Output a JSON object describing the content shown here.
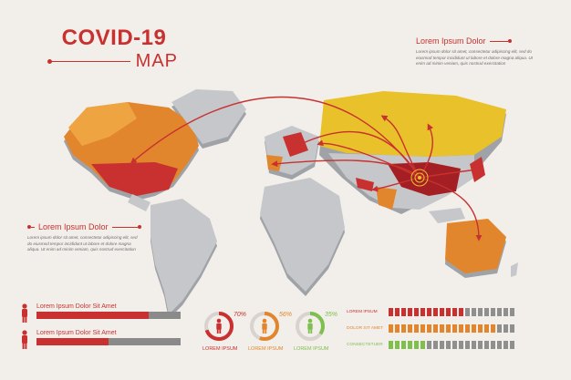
{
  "title": "COVID-19",
  "subtitle": "MAP",
  "info_right": {
    "heading": "Lorem Ipsum Dolor",
    "text": "Lorem ipsum dolor sit amet, consectetur adipiscing elit, sed do eiusmod tempor incididunt ut labore et dolore magna aliqua. Ut enim ad minim veniam, quis nostrud exercitation"
  },
  "info_left": {
    "heading": "Lorem Ipsum Dolor",
    "text": "Lorem ipsum dolor sit amet, consectetur adipiscing elit, sed do eiusmod tempor incididunt ut labore et dolore magna aliqua. Ut enim ad minim veniam, quis nostrud exercitation"
  },
  "bars": [
    {
      "label": "Lorem Ipsum Dolor Sit Amet",
      "fraction": 0.78
    },
    {
      "label": "Lorem Ipsum Dolor Sit Amet",
      "fraction": 0.5
    }
  ],
  "rings": [
    {
      "pct": "70%",
      "value": 70,
      "label": "LOREM IPSUM",
      "color": "#c8312f"
    },
    {
      "pct": "56%",
      "value": 56,
      "label": "LOREM IPSUM",
      "color": "#e2862d"
    },
    {
      "pct": "35%",
      "value": 35,
      "label": "LOREM IPSUM",
      "color": "#7fbf4e"
    }
  ],
  "segments": [
    {
      "label": "LOREM IPSUM",
      "color": "#c8312f",
      "filled": 12,
      "total": 20
    },
    {
      "label": "DOLOR SIT AMET",
      "color": "#e2862d",
      "filled": 17,
      "total": 20
    },
    {
      "label": "CONSECTETUER",
      "color": "#7fbf4e",
      "filled": 6,
      "total": 20
    }
  ],
  "colors": {
    "accent": "#c8312f",
    "orange": "#e2862d",
    "yellow": "#e8c12b",
    "land": "#c5c7ca",
    "land_shade": "#9fa2a6",
    "empty_segment": "#8f8f8f",
    "background": "#f2eeea"
  }
}
